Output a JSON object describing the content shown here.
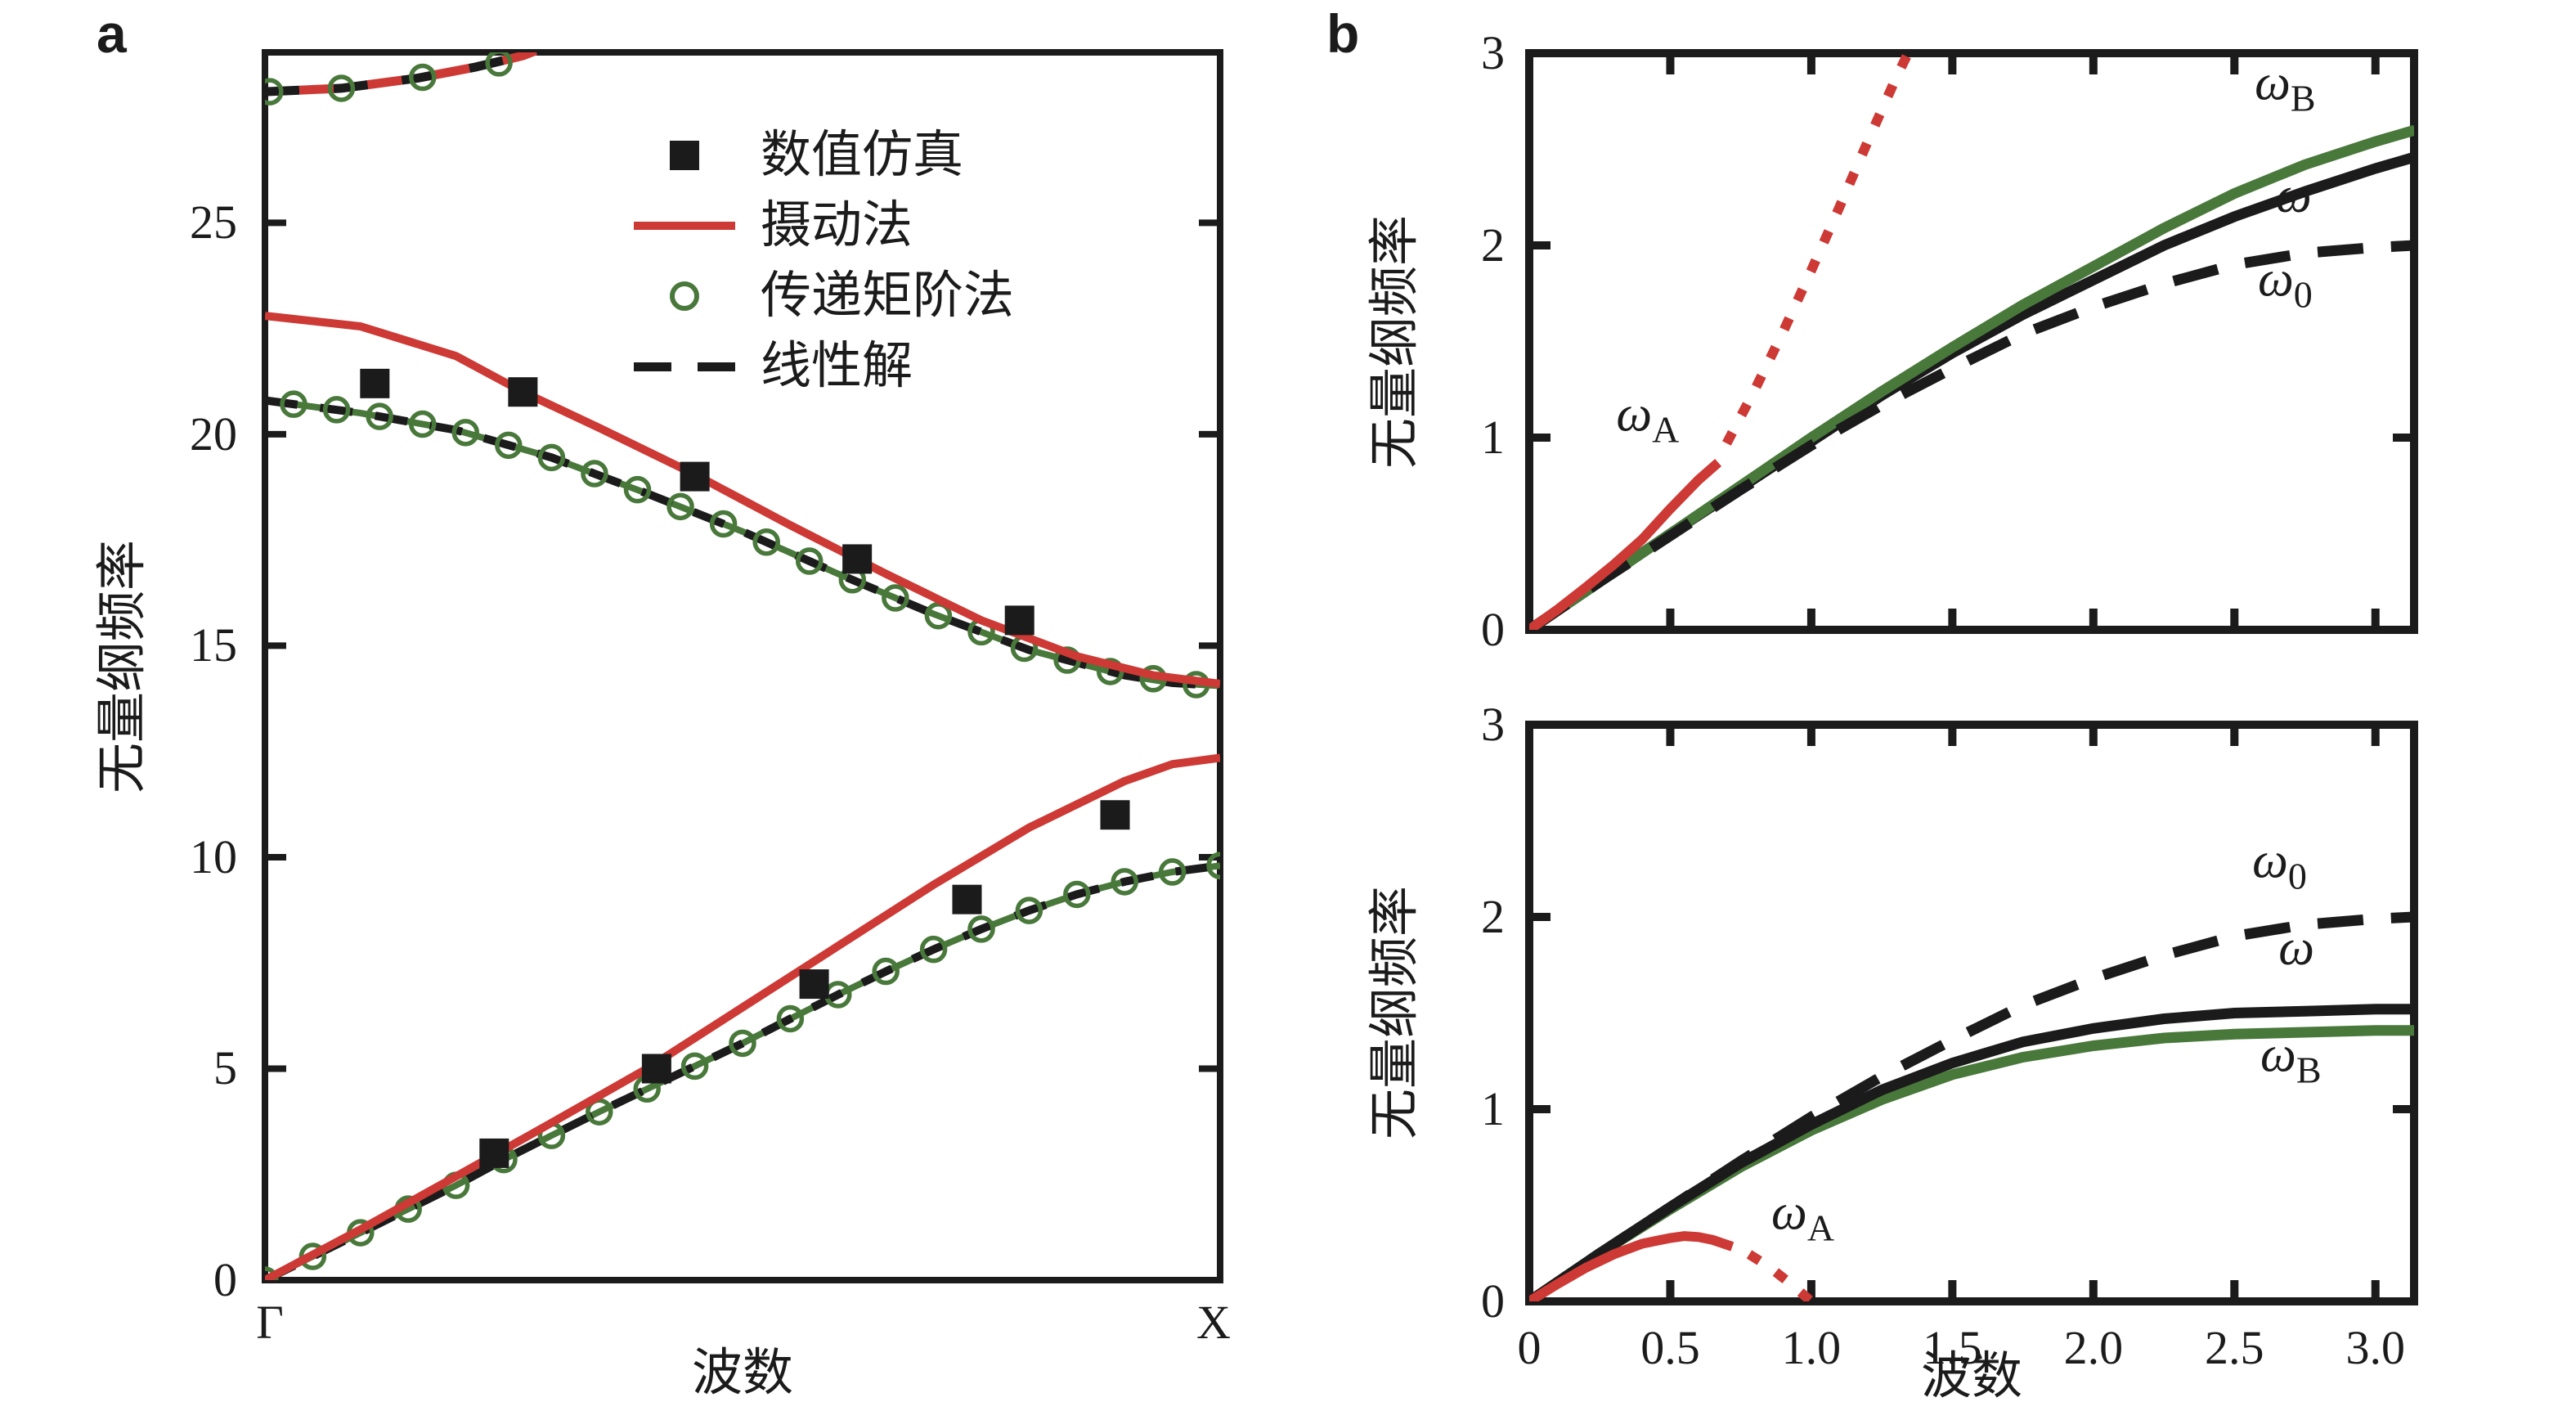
{
  "figure": {
    "panel_a_letter": "a",
    "panel_b_letter": "b"
  },
  "colors": {
    "red": "#cd3934",
    "green": "#49783b",
    "black": "#1b1b1b"
  },
  "chart_data": [
    {
      "id": "panel_a",
      "type": "line",
      "title": "",
      "xlabel": "波数",
      "ylabel": "无量纲频率",
      "xtick_labels": [
        "Γ",
        "X"
      ],
      "ytick_values": [
        0,
        5,
        10,
        15,
        20,
        25
      ],
      "ytick_labels": [
        "0",
        "5",
        "10",
        "15",
        "20",
        "25"
      ],
      "xlim": [
        0,
        1
      ],
      "ylim": [
        0,
        29.03
      ],
      "grid": false,
      "legend_position": "upper right inside",
      "legend": [
        {
          "marker": "black-square",
          "label": "数值仿真"
        },
        {
          "marker": "red-line",
          "label": "摄动法"
        },
        {
          "marker": "green-circle",
          "label": "传递矩阶法"
        },
        {
          "marker": "black-dash",
          "label": "线性解"
        }
      ],
      "series": {
        "acoustic_transfer_matrix": [
          [
            0,
            0
          ],
          [
            0.05,
            0.56
          ],
          [
            0.1,
            1.12
          ],
          [
            0.15,
            1.68
          ],
          [
            0.2,
            2.24
          ],
          [
            0.25,
            2.85
          ],
          [
            0.3,
            3.42
          ],
          [
            0.35,
            3.98
          ],
          [
            0.4,
            4.52
          ],
          [
            0.45,
            5.06
          ],
          [
            0.5,
            5.6
          ],
          [
            0.55,
            6.18
          ],
          [
            0.6,
            6.75
          ],
          [
            0.65,
            7.3
          ],
          [
            0.7,
            7.82
          ],
          [
            0.75,
            8.3
          ],
          [
            0.8,
            8.74
          ],
          [
            0.85,
            9.12
          ],
          [
            0.9,
            9.42
          ],
          [
            0.95,
            9.65
          ],
          [
            1,
            9.8
          ]
        ],
        "acoustic_perturbation": [
          [
            0,
            0
          ],
          [
            0.1,
            1.2
          ],
          [
            0.2,
            2.45
          ],
          [
            0.3,
            3.72
          ],
          [
            0.4,
            5.0
          ],
          [
            0.5,
            6.45
          ],
          [
            0.6,
            7.9
          ],
          [
            0.7,
            9.35
          ],
          [
            0.8,
            10.7
          ],
          [
            0.9,
            11.8
          ],
          [
            0.95,
            12.2
          ],
          [
            1,
            12.35
          ]
        ],
        "acoustic_simulation_squares": [
          [
            0.24,
            3.0
          ],
          [
            0.41,
            5.0
          ],
          [
            0.575,
            7.0
          ],
          [
            0.735,
            9.0
          ],
          [
            0.89,
            11.0
          ]
        ],
        "optical_transfer_matrix": [
          [
            0,
            20.8
          ],
          [
            0.1,
            20.5
          ],
          [
            0.2,
            20.1
          ],
          [
            0.3,
            19.45
          ],
          [
            0.4,
            18.6
          ],
          [
            0.5,
            17.7
          ],
          [
            0.6,
            16.7
          ],
          [
            0.7,
            15.75
          ],
          [
            0.8,
            14.9
          ],
          [
            0.9,
            14.3
          ],
          [
            0.95,
            14.12
          ],
          [
            1,
            14.05
          ]
        ],
        "optical_circles": [
          [
            0.03,
            20.71
          ],
          [
            0.075,
            20.58
          ],
          [
            0.12,
            20.42
          ],
          [
            0.165,
            20.24
          ],
          [
            0.21,
            20.04
          ],
          [
            0.255,
            19.74
          ],
          [
            0.3,
            19.45
          ],
          [
            0.345,
            19.07
          ],
          [
            0.39,
            18.69
          ],
          [
            0.435,
            18.29
          ],
          [
            0.48,
            17.88
          ],
          [
            0.525,
            17.45
          ],
          [
            0.57,
            17.0
          ],
          [
            0.615,
            16.56
          ],
          [
            0.66,
            16.13
          ],
          [
            0.705,
            15.71
          ],
          [
            0.75,
            15.33
          ],
          [
            0.795,
            14.94
          ],
          [
            0.84,
            14.66
          ],
          [
            0.885,
            14.39
          ],
          [
            0.93,
            14.22
          ],
          [
            0.975,
            14.08
          ]
        ],
        "optical_perturbation": [
          [
            0,
            22.8
          ],
          [
            0.1,
            22.55
          ],
          [
            0.2,
            21.85
          ],
          [
            0.27,
            21.0
          ],
          [
            0.35,
            20.15
          ],
          [
            0.45,
            19.05
          ],
          [
            0.55,
            17.85
          ],
          [
            0.65,
            16.7
          ],
          [
            0.75,
            15.6
          ],
          [
            0.85,
            14.75
          ],
          [
            0.93,
            14.3
          ],
          [
            1,
            14.1
          ]
        ],
        "optical_simulation_squares": [
          [
            0.115,
            21.2
          ],
          [
            0.27,
            21.0
          ],
          [
            0.45,
            19.0
          ],
          [
            0.62,
            17.05
          ],
          [
            0.79,
            15.6
          ]
        ],
        "upper_branch": [
          [
            0,
            28.1
          ],
          [
            0.08,
            28.18
          ],
          [
            0.16,
            28.42
          ],
          [
            0.22,
            28.68
          ],
          [
            0.27,
            28.95
          ],
          [
            0.31,
            29.3
          ]
        ],
        "upper_branch_circles": [
          [
            0.005,
            28.1
          ],
          [
            0.08,
            28.18
          ],
          [
            0.165,
            28.44
          ],
          [
            0.245,
            28.78
          ]
        ]
      }
    },
    {
      "id": "panel_b_top",
      "type": "line",
      "title": "",
      "xlabel": "",
      "ylabel": "无量纲频率",
      "xtick_values": [
        0,
        0.5,
        1,
        1.5,
        2,
        2.5,
        3
      ],
      "xtick_labels": [],
      "ytick_values": [
        0,
        1,
        2,
        3
      ],
      "ytick_labels": [
        "0",
        "1",
        "2",
        "3"
      ],
      "xlim": [
        0,
        3.137
      ],
      "ylim": [
        0,
        3
      ],
      "grid": false,
      "series": {
        "omega0_linear_dashed": [
          [
            0,
            0
          ],
          [
            0.25,
            0.25
          ],
          [
            0.5,
            0.49
          ],
          [
            0.75,
            0.73
          ],
          [
            1,
            0.96
          ],
          [
            1.25,
            1.17
          ],
          [
            1.5,
            1.36
          ],
          [
            1.75,
            1.54
          ],
          [
            2,
            1.68
          ],
          [
            2.25,
            1.8
          ],
          [
            2.5,
            1.9
          ],
          [
            2.75,
            1.96
          ],
          [
            3,
            1.99
          ],
          [
            3.14,
            2.0
          ]
        ],
        "omega_black": [
          [
            0,
            0
          ],
          [
            0.25,
            0.25
          ],
          [
            0.5,
            0.5
          ],
          [
            0.75,
            0.74
          ],
          [
            1,
            0.98
          ],
          [
            1.25,
            1.22
          ],
          [
            1.5,
            1.44
          ],
          [
            1.75,
            1.64
          ],
          [
            2,
            1.82
          ],
          [
            2.25,
            2.0
          ],
          [
            2.5,
            2.15
          ],
          [
            2.75,
            2.28
          ],
          [
            3,
            2.4
          ],
          [
            3.14,
            2.46
          ]
        ],
        "omegaB_green": [
          [
            0,
            0
          ],
          [
            0.25,
            0.25
          ],
          [
            0.5,
            0.5
          ],
          [
            0.75,
            0.75
          ],
          [
            1,
            1.0
          ],
          [
            1.25,
            1.24
          ],
          [
            1.5,
            1.47
          ],
          [
            1.75,
            1.69
          ],
          [
            2,
            1.89
          ],
          [
            2.25,
            2.09
          ],
          [
            2.5,
            2.27
          ],
          [
            2.75,
            2.42
          ],
          [
            3,
            2.54
          ],
          [
            3.14,
            2.6
          ]
        ],
        "omegaA_red_solid": [
          [
            0,
            0
          ],
          [
            0.1,
            0.105
          ],
          [
            0.2,
            0.22
          ],
          [
            0.3,
            0.34
          ],
          [
            0.4,
            0.47
          ],
          [
            0.5,
            0.63
          ],
          [
            0.6,
            0.78
          ],
          [
            0.67,
            0.87
          ]
        ],
        "omegaA_red_dotted": [
          [
            0.7,
            0.97
          ],
          [
            0.8,
            1.25
          ],
          [
            0.9,
            1.55
          ],
          [
            1.0,
            1.87
          ],
          [
            1.1,
            2.2
          ],
          [
            1.2,
            2.54
          ],
          [
            1.3,
            2.87
          ],
          [
            1.35,
            3.02
          ]
        ]
      },
      "annotations": [
        {
          "main": "ω",
          "sub": "A",
          "x": 0.42,
          "y": 1.1
        },
        {
          "main": "ω",
          "sub": "B",
          "x": 2.68,
          "y": 2.82
        },
        {
          "main": "ω",
          "sub": "",
          "x": 2.71,
          "y": 2.26
        },
        {
          "main": "ω",
          "sub": "0",
          "x": 2.68,
          "y": 1.8
        }
      ]
    },
    {
      "id": "panel_b_bottom",
      "type": "line",
      "title": "",
      "xlabel": "波数",
      "ylabel": "无量纲频率",
      "xtick_values": [
        0,
        0.5,
        1,
        1.5,
        2,
        2.5,
        3
      ],
      "xtick_labels": [
        "0",
        "0.5",
        "1.0",
        "1.5",
        "2.0",
        "2.5",
        "3.0"
      ],
      "ytick_values": [
        0,
        1,
        2,
        3
      ],
      "ytick_labels": [
        "0",
        "1",
        "2",
        "3"
      ],
      "xlim": [
        0,
        3.137
      ],
      "ylim": [
        0,
        3
      ],
      "grid": false,
      "series": {
        "omega0_linear_dashed": [
          [
            0,
            0
          ],
          [
            0.25,
            0.25
          ],
          [
            0.5,
            0.49
          ],
          [
            0.75,
            0.73
          ],
          [
            1,
            0.96
          ],
          [
            1.25,
            1.17
          ],
          [
            1.5,
            1.36
          ],
          [
            1.75,
            1.54
          ],
          [
            2,
            1.68
          ],
          [
            2.25,
            1.8
          ],
          [
            2.5,
            1.9
          ],
          [
            2.75,
            1.96
          ],
          [
            3,
            1.99
          ],
          [
            3.14,
            2.0
          ]
        ],
        "omega_black": [
          [
            0,
            0
          ],
          [
            0.25,
            0.25
          ],
          [
            0.5,
            0.49
          ],
          [
            0.75,
            0.72
          ],
          [
            1,
            0.92
          ],
          [
            1.25,
            1.1
          ],
          [
            1.5,
            1.24
          ],
          [
            1.75,
            1.35
          ],
          [
            2,
            1.42
          ],
          [
            2.25,
            1.47
          ],
          [
            2.5,
            1.5
          ],
          [
            2.75,
            1.51
          ],
          [
            3,
            1.52
          ],
          [
            3.14,
            1.52
          ]
        ],
        "omegaB_green": [
          [
            0,
            0
          ],
          [
            0.25,
            0.25
          ],
          [
            0.5,
            0.48
          ],
          [
            0.75,
            0.7
          ],
          [
            1,
            0.89
          ],
          [
            1.25,
            1.05
          ],
          [
            1.5,
            1.18
          ],
          [
            1.75,
            1.27
          ],
          [
            2,
            1.33
          ],
          [
            2.25,
            1.37
          ],
          [
            2.5,
            1.39
          ],
          [
            2.75,
            1.4
          ],
          [
            3,
            1.41
          ],
          [
            3.14,
            1.41
          ]
        ],
        "omegaA_red_solid": [
          [
            0,
            0
          ],
          [
            0.1,
            0.09
          ],
          [
            0.2,
            0.175
          ],
          [
            0.3,
            0.245
          ],
          [
            0.4,
            0.3
          ],
          [
            0.5,
            0.33
          ],
          [
            0.55,
            0.34
          ],
          [
            0.6,
            0.335
          ],
          [
            0.65,
            0.32
          ],
          [
            0.72,
            0.285
          ]
        ],
        "omegaA_red_dotted": [
          [
            0.78,
            0.245
          ],
          [
            0.85,
            0.18
          ],
          [
            0.92,
            0.1
          ],
          [
            1.0,
            0
          ]
        ]
      },
      "annotations": [
        {
          "main": "ω",
          "sub": "0",
          "x": 2.66,
          "y": 2.27
        },
        {
          "main": "ω",
          "sub": "",
          "x": 2.72,
          "y": 1.84
        },
        {
          "main": "ω",
          "sub": "B",
          "x": 2.7,
          "y": 1.26
        },
        {
          "main": "ω",
          "sub": "A",
          "x": 0.97,
          "y": 0.44
        }
      ]
    }
  ]
}
